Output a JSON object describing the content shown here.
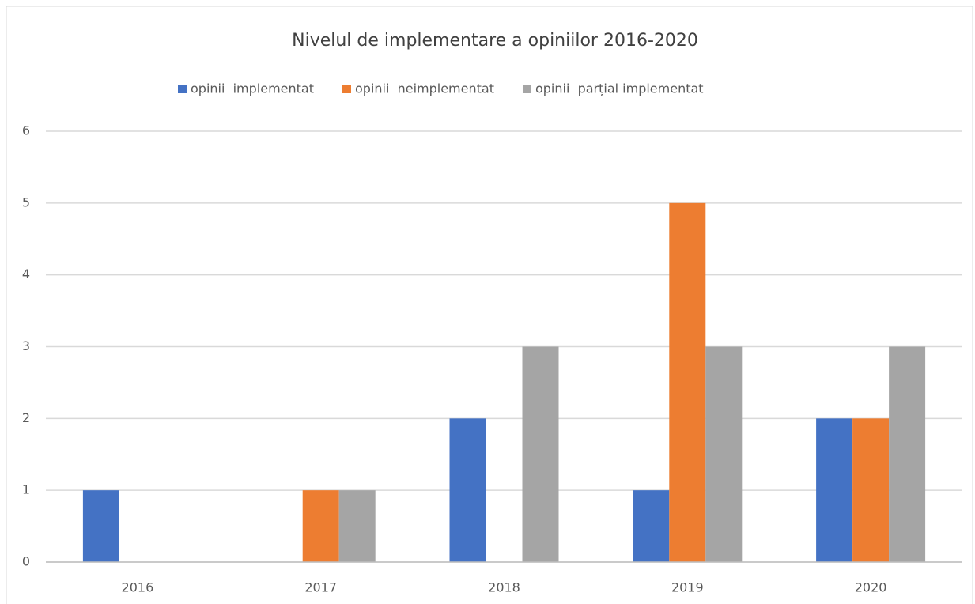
{
  "chart_data": {
    "type": "bar",
    "title": "Nivelul de implementare a opiniilor 2016-2020",
    "categories": [
      "2016",
      "2017",
      "2018",
      "2019",
      "2020"
    ],
    "series": [
      {
        "name": "opinii  implementat",
        "color": "#4472c4",
        "values": [
          1,
          0,
          2,
          1,
          2
        ]
      },
      {
        "name": "opinii  neimplementat",
        "color": "#ed7d31",
        "values": [
          0,
          1,
          0,
          5,
          2
        ]
      },
      {
        "name": "opinii  parțial implementat",
        "color": "#a5a5a5",
        "values": [
          0,
          1,
          3,
          3,
          3
        ]
      }
    ],
    "ylim": [
      0,
      6
    ],
    "yticks": [
      0,
      1,
      2,
      3,
      4,
      5,
      6
    ],
    "grid": true,
    "legend": "top"
  }
}
